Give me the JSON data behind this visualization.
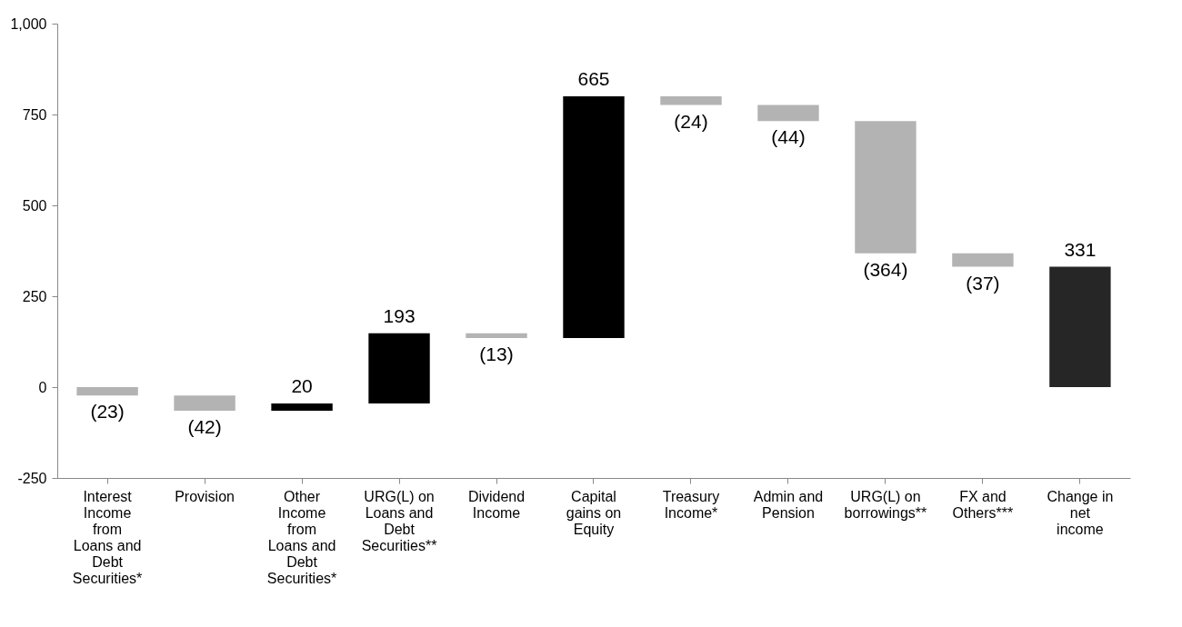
{
  "chart_data": {
    "type": "bar",
    "categories": [
      "Interest Income from Loans and Debt Securities*",
      "Provision",
      "Other Income from Loans and Debt Securities*",
      "URG(L) on Loans and Debt Securities**",
      "Dividend Income",
      "Capital gains on Equity",
      "Treasury Income*",
      "Admin and Pension",
      "URG(L) on borrowings**",
      "FX and Others***",
      "Change in net income"
    ],
    "values": [
      -23,
      -42,
      20,
      193,
      -13,
      665,
      -24,
      -44,
      -364,
      -37,
      331
    ],
    "base": [
      0,
      -23,
      -65,
      -45,
      148,
      135,
      800,
      776,
      732,
      368,
      0
    ],
    "colors": [
      "#b3b3b3",
      "#b3b3b3",
      "#000000",
      "#000000",
      "#b3b3b3",
      "#000000",
      "#b3b3b3",
      "#b3b3b3",
      "#b3b3b3",
      "#b3b3b3",
      "#262626"
    ],
    "value_labels": [
      "(23)",
      "(42)",
      "20",
      "193",
      "(13)",
      "665",
      "(24)",
      "(44)",
      "(364)",
      "(37)",
      "331"
    ],
    "ylim": [
      -250,
      1000
    ],
    "yticks": [
      -250,
      0,
      250,
      500,
      750,
      {
        "value": 1000,
        "label": "1,000"
      }
    ],
    "grid": false
  }
}
